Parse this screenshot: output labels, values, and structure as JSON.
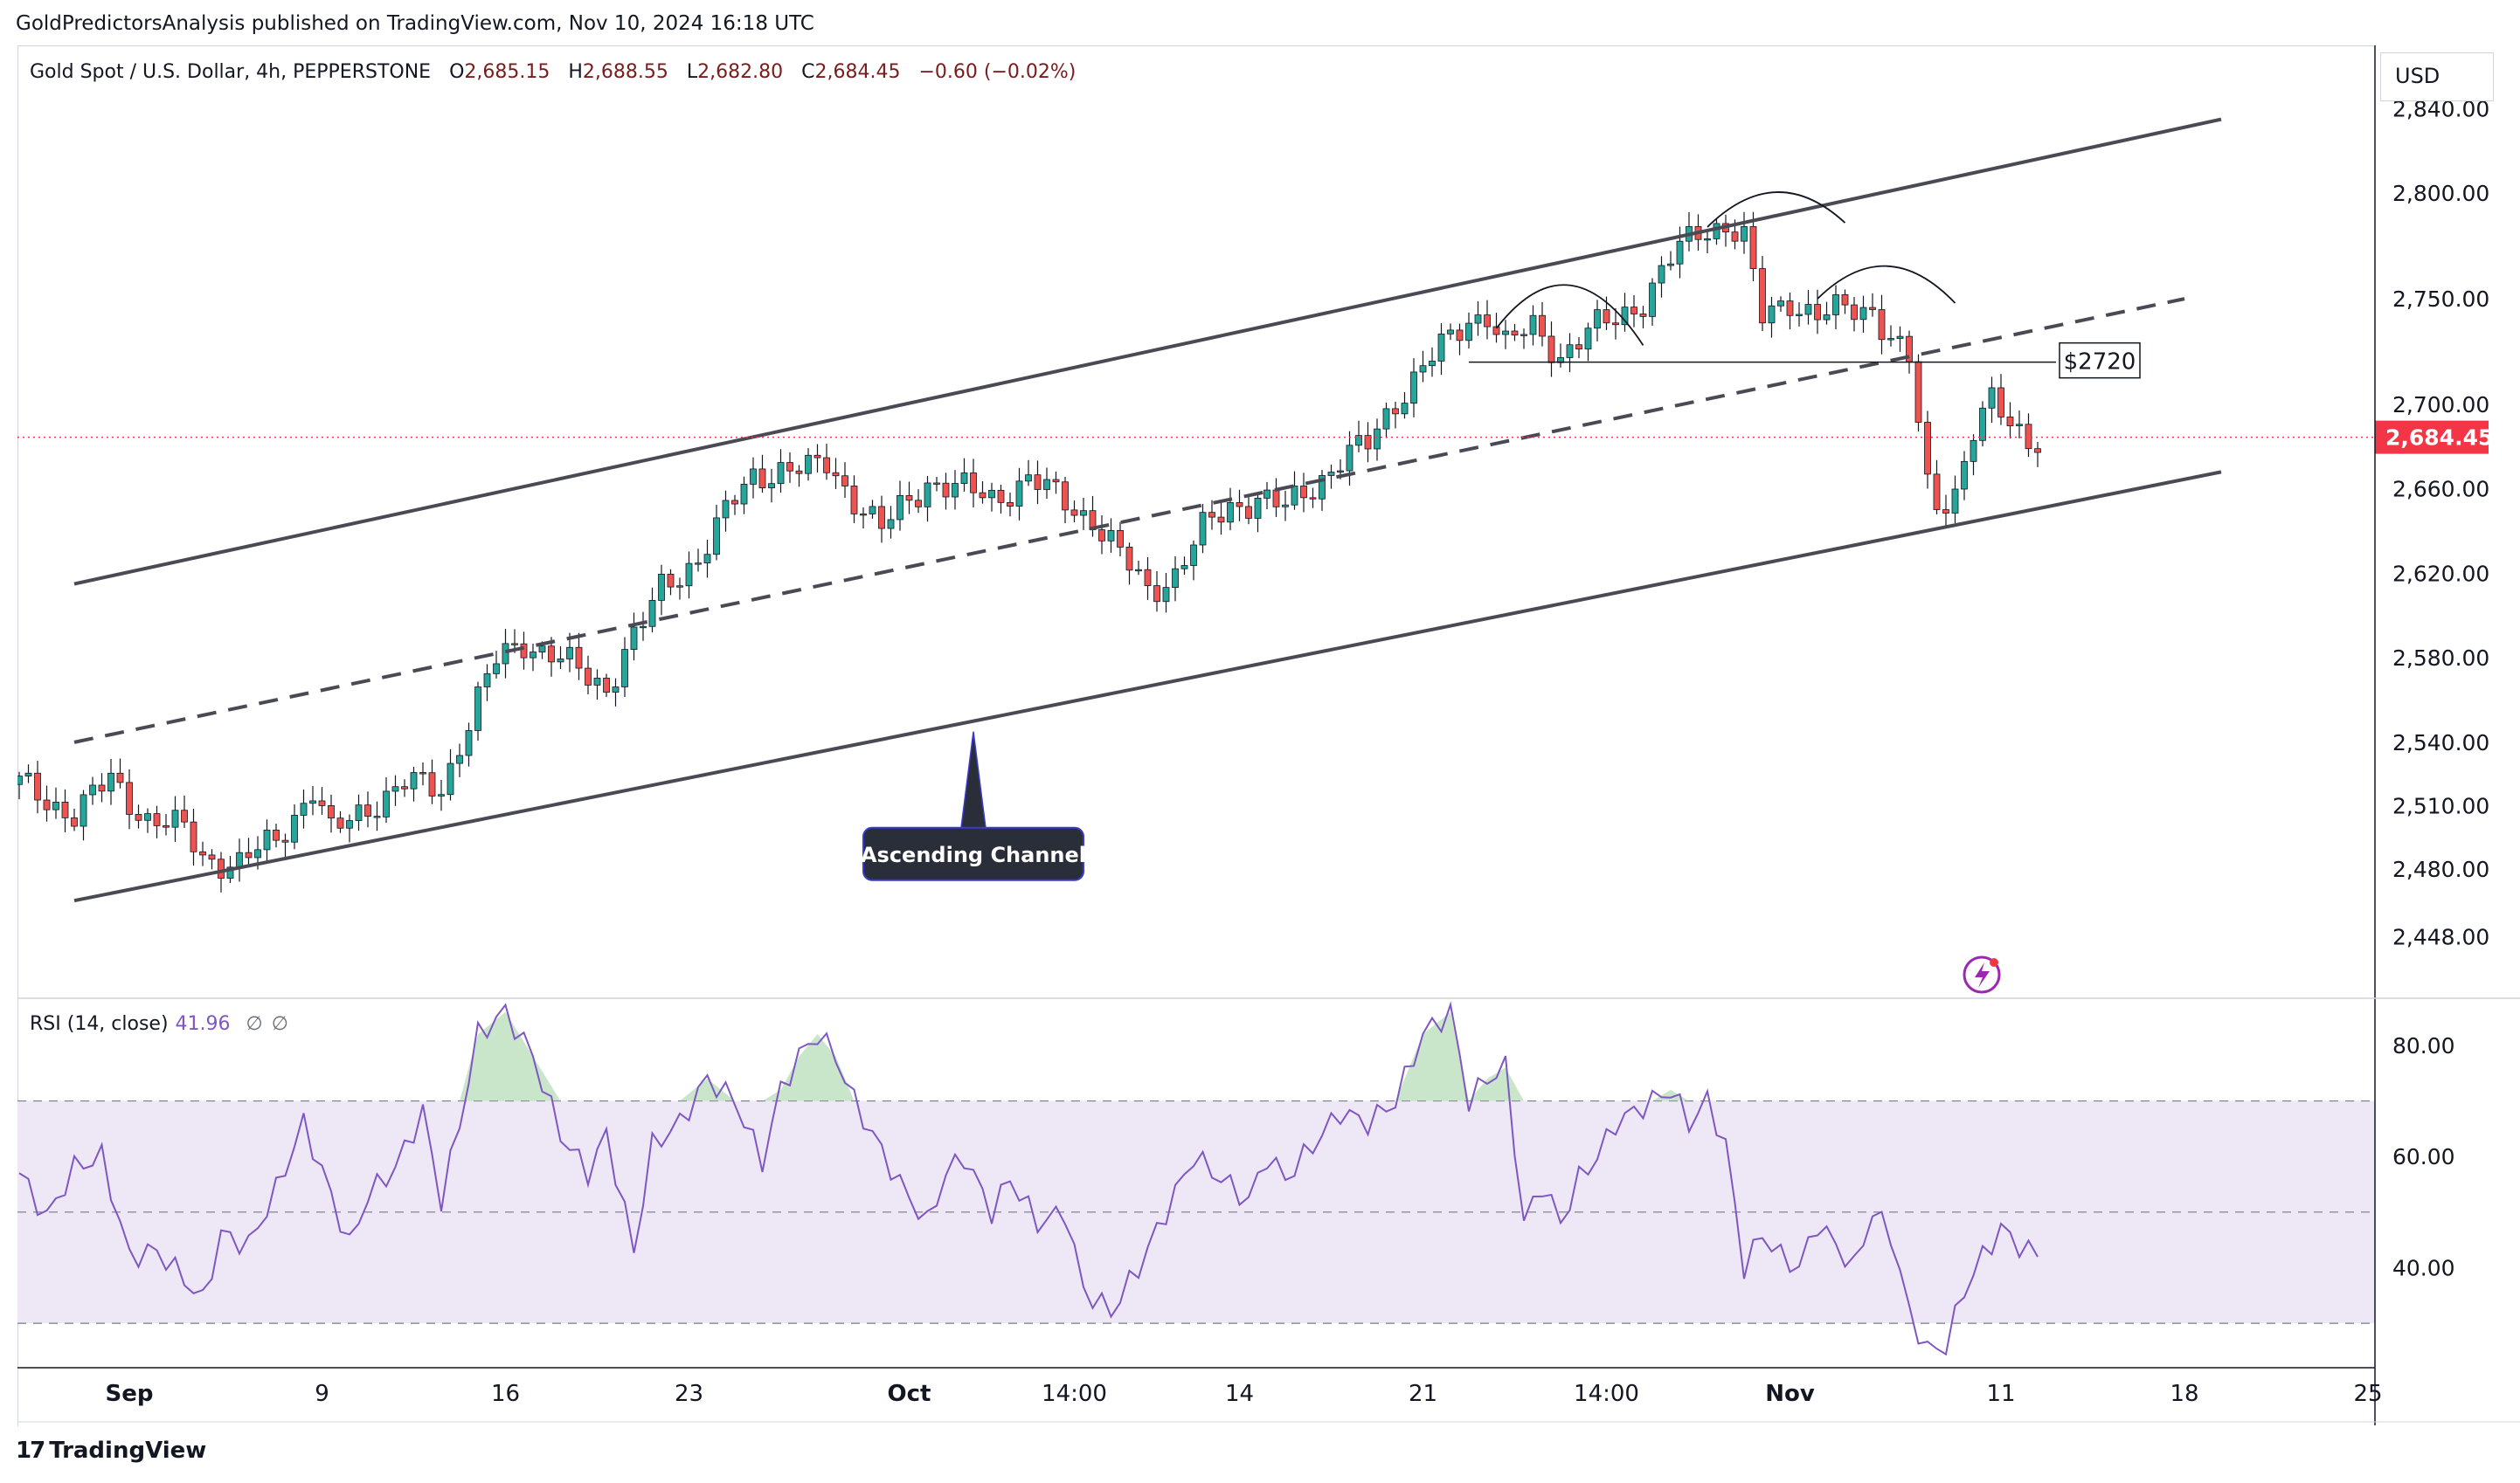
{
  "publisher_line": "GoldPredictorsAnalysis published on TradingView.com, Nov 10, 2024 16:18 UTC",
  "legend": {
    "symbol": "Gold Spot / U.S. Dollar, 4h, PEPPERSTONE",
    "open_label": "O",
    "open": "2,685.15",
    "high_label": "H",
    "high": "2,688.55",
    "low_label": "L",
    "low": "2,682.80",
    "close_label": "C",
    "close": "2,684.45",
    "change": "−0.60 (−0.02%)"
  },
  "currency": "USD",
  "footer": {
    "brand": "TradingView",
    "mark": "17"
  },
  "colors": {
    "up": "#26a69a",
    "down": "#ef5350",
    "line": "#4a4a55",
    "rsi": "#7e57c2",
    "rsi_band": "#ede7f6",
    "price_tag": "#f23645"
  },
  "chart_data": [
    {
      "type": "candlestick",
      "title": "Gold Spot / U.S. Dollar, 4h, PEPPERSTONE",
      "ylabel": "USD",
      "ylim": [
        2420,
        2870
      ],
      "y_ticks": [
        "2,840.00",
        "2,800.00",
        "2,750.00",
        "2,700.00",
        "2,660.00",
        "2,620.00",
        "2,580.00",
        "2,540.00",
        "2,510.00",
        "2,480.00",
        "2,448.00"
      ],
      "y_tick_values": [
        2840,
        2800,
        2750,
        2700,
        2660,
        2620,
        2580,
        2540,
        2510,
        2480,
        2448
      ],
      "x_ticks": [
        "Sep",
        "9",
        "16",
        "23",
        "Oct",
        "14:00",
        "14",
        "21",
        "14:00",
        "Nov",
        "11",
        "18",
        "25"
      ],
      "x_tick_index": [
        12,
        33,
        53,
        73,
        97,
        115,
        133,
        153,
        173,
        193,
        216,
        236,
        256
      ],
      "bars_total": 260,
      "last_price": "2,684.45",
      "last_price_value": 2684.45,
      "close_path": [
        [
          0,
          2520
        ],
        [
          6,
          2506
        ],
        [
          10,
          2522
        ],
        [
          14,
          2504
        ],
        [
          18,
          2498
        ],
        [
          20,
          2486
        ],
        [
          24,
          2482
        ],
        [
          28,
          2494
        ],
        [
          32,
          2518
        ],
        [
          34,
          2496
        ],
        [
          38,
          2510
        ],
        [
          42,
          2520
        ],
        [
          46,
          2518
        ],
        [
          48,
          2540
        ],
        [
          50,
          2560
        ],
        [
          52,
          2578
        ],
        [
          55,
          2588
        ],
        [
          58,
          2582
        ],
        [
          62,
          2570
        ],
        [
          64,
          2566
        ],
        [
          66,
          2584
        ],
        [
          68,
          2596
        ],
        [
          70,
          2612
        ],
        [
          74,
          2628
        ],
        [
          77,
          2648
        ],
        [
          80,
          2666
        ],
        [
          83,
          2670
        ],
        [
          86,
          2668
        ],
        [
          88,
          2672
        ],
        [
          91,
          2656
        ],
        [
          94,
          2640
        ],
        [
          96,
          2650
        ],
        [
          99,
          2664
        ],
        [
          102,
          2660
        ],
        [
          106,
          2656
        ],
        [
          110,
          2664
        ],
        [
          114,
          2654
        ],
        [
          117,
          2646
        ],
        [
          120,
          2628
        ],
        [
          123,
          2612
        ],
        [
          126,
          2620
        ],
        [
          129,
          2640
        ],
        [
          132,
          2652
        ],
        [
          135,
          2656
        ],
        [
          138,
          2650
        ],
        [
          141,
          2662
        ],
        [
          144,
          2674
        ],
        [
          147,
          2680
        ],
        [
          150,
          2702
        ],
        [
          153,
          2718
        ],
        [
          156,
          2730
        ],
        [
          158,
          2740
        ],
        [
          160,
          2744
        ],
        [
          162,
          2728
        ],
        [
          165,
          2736
        ],
        [
          168,
          2724
        ],
        [
          171,
          2734
        ],
        [
          174,
          2740
        ],
        [
          177,
          2750
        ],
        [
          180,
          2768
        ],
        [
          183,
          2782
        ],
        [
          186,
          2786
        ],
        [
          188,
          2778
        ],
        [
          190,
          2740
        ],
        [
          193,
          2750
        ],
        [
          196,
          2742
        ],
        [
          199,
          2744
        ],
        [
          202,
          2746
        ],
        [
          204,
          2732
        ],
        [
          206,
          2720
        ],
        [
          207,
          2690
        ],
        [
          208,
          2660
        ],
        [
          209,
          2652
        ],
        [
          211,
          2660
        ],
        [
          213,
          2688
        ],
        [
          215,
          2700
        ],
        [
          217,
          2690
        ],
        [
          219,
          2685
        ],
        [
          220,
          2684.45
        ]
      ],
      "annotations": {
        "channel_upper": [
          [
            6,
            2615
          ],
          [
            240,
            2835
          ]
        ],
        "channel_lower": [
          [
            6,
            2465
          ],
          [
            240,
            2668
          ]
        ],
        "channel_mid": [
          [
            6,
            2540
          ],
          [
            236,
            2750
          ]
        ],
        "support_line_value": 2720,
        "support_line_span": [
          158,
          222
        ],
        "support_label": "$2720",
        "callout": "Ascending Channel",
        "callout_anchor": [
          104,
          2545
        ],
        "arcs": [
          {
            "from": [
              161,
              2736
            ],
            "to": [
              177,
              2728
            ],
            "top": 2764
          },
          {
            "from": [
              184,
              2784
            ],
            "to": [
              199,
              2786
            ],
            "top": 2804
          },
          {
            "from": [
              196,
              2750
            ],
            "to": [
              211,
              2748
            ],
            "top": 2770
          }
        ]
      }
    },
    {
      "type": "line",
      "title": "RSI (14, close)",
      "legend": "RSI (14, close)",
      "value": "41.96",
      "na_1": "∅",
      "na_2": "∅",
      "ylim": [
        22,
        88
      ],
      "y_ticks": [
        "80.00",
        "60.00",
        "40.00"
      ],
      "y_tick_values": [
        80,
        60,
        40
      ],
      "band_upper": 70,
      "band_mid": 50,
      "band_lower": 30,
      "series": [
        [
          0,
          57
        ],
        [
          3,
          49
        ],
        [
          6,
          58
        ],
        [
          9,
          60
        ],
        [
          12,
          42
        ],
        [
          15,
          43
        ],
        [
          18,
          38
        ],
        [
          20,
          34
        ],
        [
          22,
          46
        ],
        [
          25,
          44
        ],
        [
          28,
          54
        ],
        [
          31,
          66
        ],
        [
          34,
          53
        ],
        [
          36,
          44
        ],
        [
          38,
          53
        ],
        [
          41,
          58
        ],
        [
          44,
          68
        ],
        [
          46,
          52
        ],
        [
          48,
          66
        ],
        [
          50,
          82
        ],
        [
          53,
          86
        ],
        [
          56,
          78
        ],
        [
          59,
          64
        ],
        [
          62,
          57
        ],
        [
          64,
          64
        ],
        [
          67,
          43
        ],
        [
          69,
          62
        ],
        [
          72,
          66
        ],
        [
          75,
          74
        ],
        [
          78,
          70
        ],
        [
          81,
          59
        ],
        [
          83,
          72
        ],
        [
          85,
          78
        ],
        [
          87,
          82
        ],
        [
          89,
          78
        ],
        [
          91,
          70
        ],
        [
          94,
          61
        ],
        [
          96,
          55
        ],
        [
          99,
          48
        ],
        [
          101,
          57
        ],
        [
          103,
          60
        ],
        [
          106,
          50
        ],
        [
          108,
          56
        ],
        [
          111,
          48
        ],
        [
          114,
          50
        ],
        [
          116,
          36
        ],
        [
          119,
          32
        ],
        [
          122,
          40
        ],
        [
          125,
          50
        ],
        [
          128,
          60
        ],
        [
          131,
          56
        ],
        [
          134,
          52
        ],
        [
          136,
          60
        ],
        [
          138,
          56
        ],
        [
          141,
          62
        ],
        [
          144,
          68
        ],
        [
          147,
          66
        ],
        [
          150,
          70
        ],
        [
          153,
          82
        ],
        [
          156,
          86
        ],
        [
          158,
          70
        ],
        [
          160,
          74
        ],
        [
          162,
          76
        ],
        [
          164,
          48
        ],
        [
          166,
          55
        ],
        [
          168,
          48
        ],
        [
          170,
          56
        ],
        [
          172,
          60
        ],
        [
          174,
          66
        ],
        [
          176,
          68
        ],
        [
          178,
          70
        ],
        [
          180,
          72
        ],
        [
          182,
          66
        ],
        [
          184,
          70
        ],
        [
          186,
          62
        ],
        [
          188,
          40
        ],
        [
          190,
          46
        ],
        [
          192,
          42
        ],
        [
          194,
          40
        ],
        [
          196,
          48
        ],
        [
          198,
          44
        ],
        [
          200,
          40
        ],
        [
          202,
          50
        ],
        [
          204,
          46
        ],
        [
          206,
          32
        ],
        [
          208,
          25
        ],
        [
          210,
          26
        ],
        [
          212,
          36
        ],
        [
          214,
          42
        ],
        [
          216,
          47
        ],
        [
          218,
          44
        ],
        [
          220,
          41.96
        ]
      ]
    }
  ]
}
